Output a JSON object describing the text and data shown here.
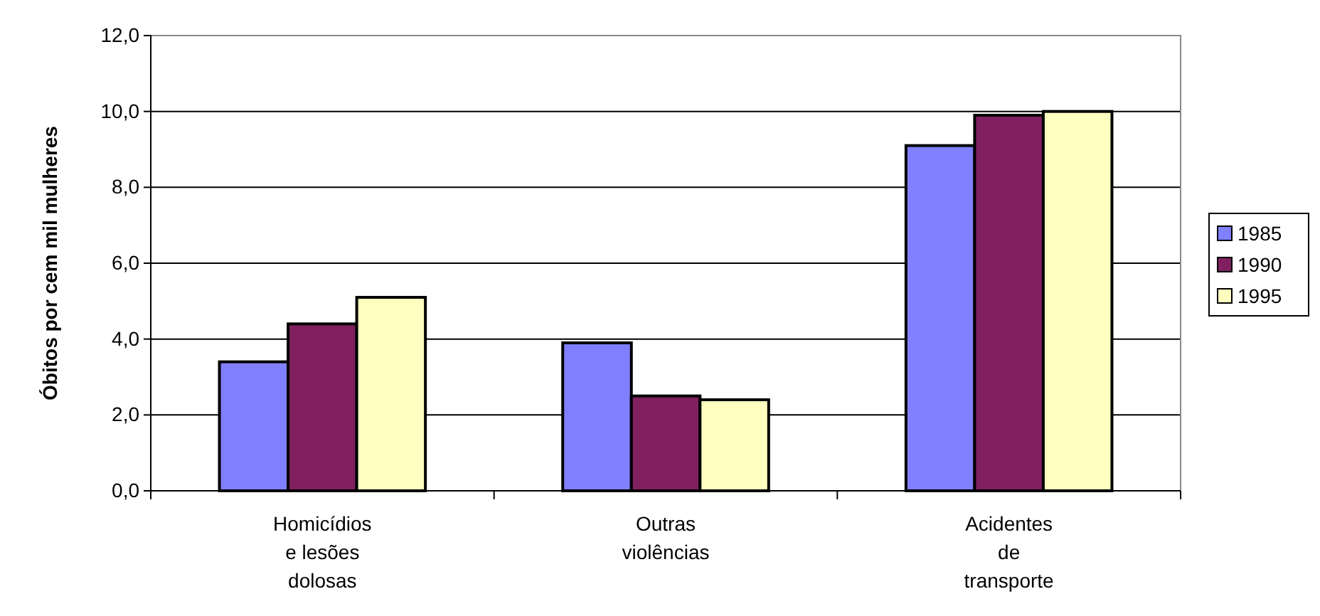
{
  "chart_data": {
    "type": "bar",
    "ylabel": "Óbitos por cem mil mulheres",
    "categories": [
      "Homicídios\ne lesões\ndolosas",
      "Outras\nviolências",
      "Acidentes\nde\ntransporte"
    ],
    "series": [
      {
        "name": "1985",
        "color": "#8080ff",
        "values": [
          3.4,
          3.9,
          9.1
        ]
      },
      {
        "name": "1990",
        "color": "#802060",
        "values": [
          4.4,
          2.5,
          9.9
        ]
      },
      {
        "name": "1995",
        "color": "#ffffc0",
        "values": [
          5.1,
          2.4,
          10.0
        ]
      }
    ],
    "ylim": [
      0,
      12
    ],
    "yticks": [
      {
        "value": 0,
        "label": "0,0"
      },
      {
        "value": 2,
        "label": "2,0"
      },
      {
        "value": 4,
        "label": "4,0"
      },
      {
        "value": 6,
        "label": "6,0"
      },
      {
        "value": 8,
        "label": "8,0"
      },
      {
        "value": 10,
        "label": "10,0"
      },
      {
        "value": 12,
        "label": "12,0"
      }
    ],
    "grid": "y",
    "legend": "right"
  }
}
